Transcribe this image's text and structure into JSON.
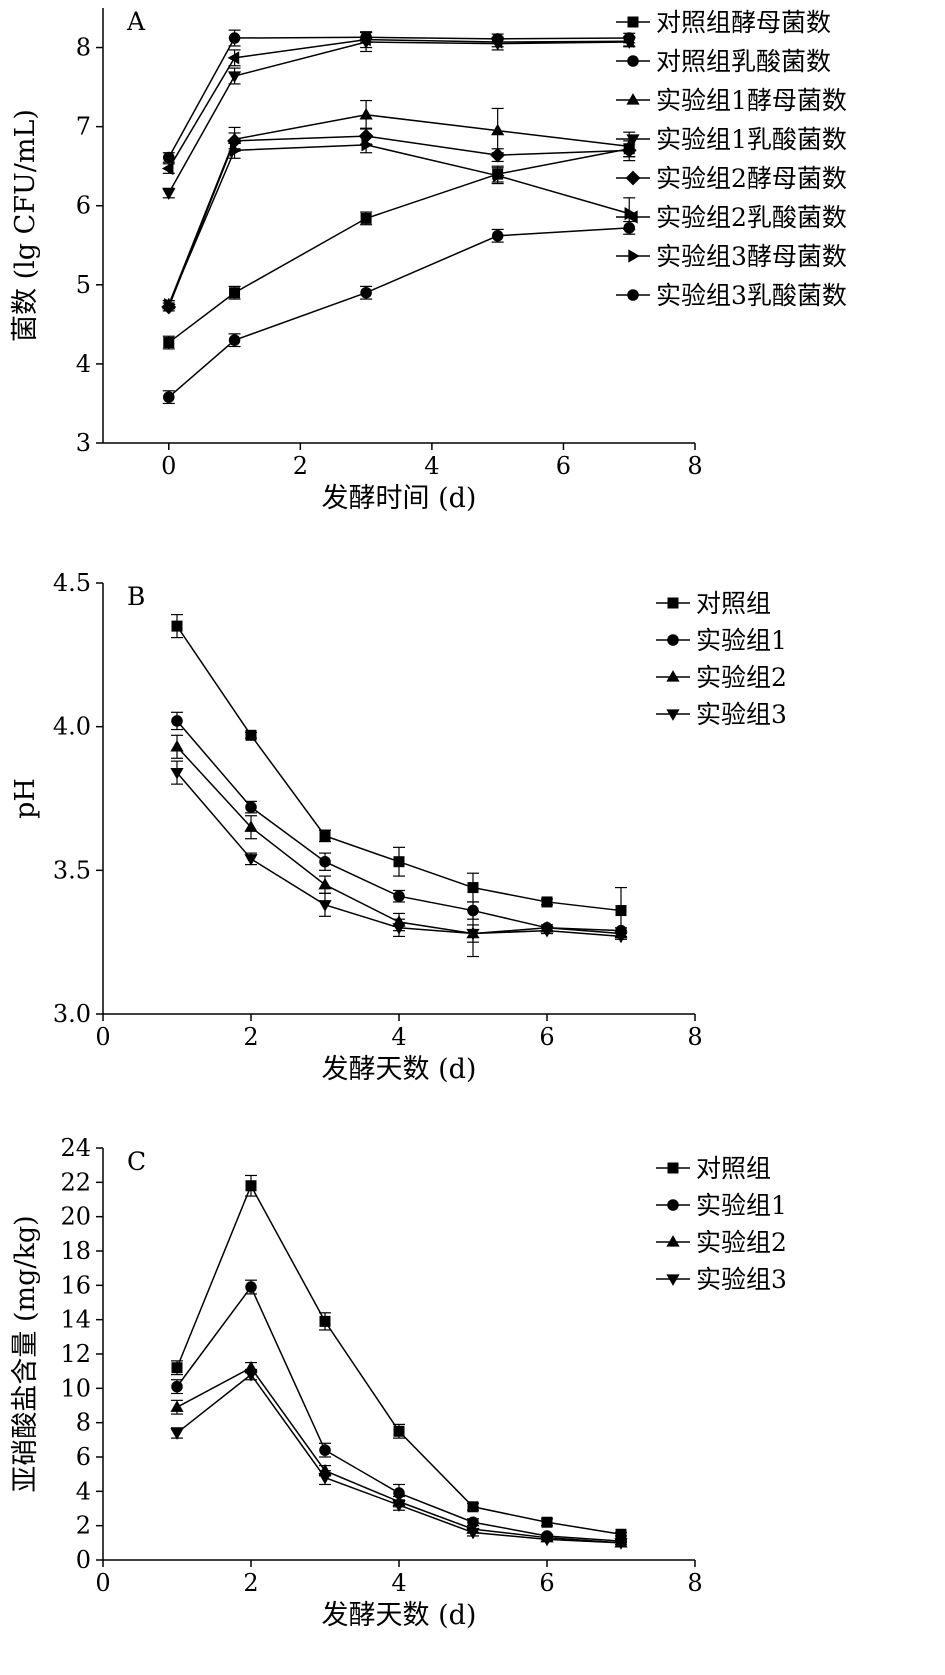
{
  "chart_data": [
    {
      "panel_label": "A",
      "type": "line",
      "xlabel": "发酵时间 (d)",
      "ylabel": "菌数 (lg CFU/mL)",
      "xlim": [
        -1,
        8
      ],
      "ylim": [
        3,
        8.5
      ],
      "xticks": [
        0,
        2,
        4,
        6,
        8
      ],
      "yticks": [
        3,
        4,
        5,
        6,
        7,
        8
      ],
      "grid": false,
      "legend_position": "right",
      "series": [
        {
          "name": "对照组酵母菌数",
          "marker": "square",
          "x": [
            0,
            1,
            3,
            5,
            7
          ],
          "y": [
            4.27,
            4.9,
            5.84,
            6.4,
            6.72
          ],
          "err": [
            0.08,
            0.08,
            0.08,
            0.1,
            0.1
          ]
        },
        {
          "name": "对照组乳酸菌数",
          "marker": "circle",
          "x": [
            0,
            1,
            3,
            5,
            7
          ],
          "y": [
            3.58,
            4.3,
            4.9,
            5.62,
            5.72
          ],
          "err": [
            0.08,
            0.08,
            0.08,
            0.08,
            0.08
          ]
        },
        {
          "name": "实验组1酵母菌数",
          "marker": "triangle-up",
          "x": [
            0,
            1,
            3,
            5,
            7
          ],
          "y": [
            4.75,
            6.84,
            7.15,
            6.95,
            6.75
          ],
          "err": [
            0.05,
            0.15,
            0.18,
            0.28,
            0.18
          ]
        },
        {
          "name": "实验组1乳酸菌数",
          "marker": "triangle-down",
          "x": [
            0,
            1,
            3,
            5,
            7
          ],
          "y": [
            6.16,
            7.64,
            8.07,
            8.05,
            8.07
          ],
          "err": [
            0.06,
            0.1,
            0.12,
            0.08,
            0.06
          ]
        },
        {
          "name": "实验组2酵母菌数",
          "marker": "diamond",
          "x": [
            0,
            1,
            3,
            5,
            7
          ],
          "y": [
            4.72,
            6.82,
            6.88,
            6.64,
            6.7
          ],
          "err": [
            0.05,
            0.1,
            0.1,
            0.08,
            0.08
          ]
        },
        {
          "name": "实验组2乳酸菌数",
          "marker": "triangle-left",
          "x": [
            0,
            1,
            3,
            5,
            7
          ],
          "y": [
            6.47,
            7.87,
            8.1,
            8.07,
            8.08
          ],
          "err": [
            0.06,
            0.1,
            0.1,
            0.06,
            0.06
          ]
        },
        {
          "name": "实验组3酵母菌数",
          "marker": "triangle-right",
          "x": [
            0,
            1,
            3,
            5,
            7
          ],
          "y": [
            4.75,
            6.7,
            6.77,
            6.38,
            5.9
          ],
          "err": [
            0.05,
            0.1,
            0.1,
            0.1,
            0.2
          ]
        },
        {
          "name": "实验组3乳酸菌数",
          "marker": "circle",
          "x": [
            0,
            1,
            3,
            5,
            7
          ],
          "y": [
            6.61,
            8.12,
            8.13,
            8.11,
            8.12
          ],
          "err": [
            0.06,
            0.1,
            0.06,
            0.06,
            0.06
          ]
        }
      ]
    },
    {
      "panel_label": "B",
      "type": "line",
      "xlabel": "发酵天数 (d)",
      "ylabel": "pH",
      "xlim": [
        0,
        8
      ],
      "ylim": [
        3.0,
        4.5
      ],
      "xticks": [
        0,
        2,
        4,
        6,
        8
      ],
      "yticks": [
        3.0,
        3.5,
        4.0,
        4.5
      ],
      "ytick_labels": [
        "3.0",
        "3.5",
        "4.0",
        "4.5"
      ],
      "grid": false,
      "legend_position": "top-right",
      "series": [
        {
          "name": "对照组",
          "marker": "square",
          "x": [
            1,
            2,
            3,
            4,
            5,
            6,
            7
          ],
          "y": [
            4.35,
            3.97,
            3.62,
            3.53,
            3.44,
            3.39,
            3.36
          ],
          "err": [
            0.04,
            0.01,
            0.02,
            0.05,
            0.05,
            0.01,
            0.08
          ]
        },
        {
          "name": "实验组1",
          "marker": "circle",
          "x": [
            1,
            2,
            3,
            4,
            5,
            6,
            7
          ],
          "y": [
            4.02,
            3.72,
            3.53,
            3.41,
            3.36,
            3.3,
            3.29
          ],
          "err": [
            0.03,
            0.02,
            0.03,
            0.02,
            0.03,
            0.01,
            0.01
          ]
        },
        {
          "name": "实验组2",
          "marker": "triangle-up",
          "x": [
            1,
            2,
            3,
            4,
            5,
            6,
            7
          ],
          "y": [
            3.93,
            3.65,
            3.45,
            3.32,
            3.28,
            3.3,
            3.28
          ],
          "err": [
            0.04,
            0.04,
            0.03,
            0.03,
            0.08,
            0.01,
            0.01
          ]
        },
        {
          "name": "实验组3",
          "marker": "triangle-down",
          "x": [
            1,
            2,
            3,
            4,
            5,
            6,
            7
          ],
          "y": [
            3.84,
            3.54,
            3.38,
            3.3,
            3.28,
            3.29,
            3.27
          ],
          "err": [
            0.04,
            0.02,
            0.04,
            0.03,
            0.03,
            0.01,
            0.01
          ]
        }
      ]
    },
    {
      "panel_label": "C",
      "type": "line",
      "xlabel": "发酵天数 (d)",
      "ylabel": "亚硝酸盐含量 (mg/kg)",
      "xlim": [
        0,
        8
      ],
      "ylim": [
        0,
        24
      ],
      "xticks": [
        0,
        2,
        4,
        6,
        8
      ],
      "yticks": [
        0,
        2,
        4,
        6,
        8,
        10,
        12,
        14,
        16,
        18,
        20,
        22,
        24
      ],
      "grid": false,
      "legend_position": "top-right",
      "series": [
        {
          "name": "对照组",
          "marker": "square",
          "x": [
            1,
            2,
            3,
            4,
            5,
            6,
            7
          ],
          "y": [
            11.2,
            21.8,
            13.9,
            7.5,
            3.1,
            2.2,
            1.5
          ],
          "err": [
            0.4,
            0.6,
            0.5,
            0.4,
            0.2,
            0.2,
            0.1
          ]
        },
        {
          "name": "实验组1",
          "marker": "circle",
          "x": [
            1,
            2,
            3,
            4,
            5,
            6,
            7
          ],
          "y": [
            10.1,
            15.9,
            6.4,
            3.9,
            2.2,
            1.4,
            1.1
          ],
          "err": [
            0.4,
            0.4,
            0.4,
            0.5,
            0.2,
            0.1,
            0.1
          ]
        },
        {
          "name": "实验组2",
          "marker": "triangle-up",
          "x": [
            1,
            2,
            3,
            4,
            5,
            6,
            7
          ],
          "y": [
            8.9,
            11.2,
            5.2,
            3.4,
            1.8,
            1.3,
            1.0
          ],
          "err": [
            0.4,
            0.3,
            0.3,
            0.3,
            0.2,
            0.1,
            0.1
          ]
        },
        {
          "name": "实验组3",
          "marker": "triangle-down",
          "x": [
            1,
            2,
            3,
            4,
            5,
            6,
            7
          ],
          "y": [
            7.4,
            10.8,
            4.8,
            3.2,
            1.6,
            1.2,
            1.0
          ],
          "err": [
            0.3,
            0.3,
            0.4,
            0.3,
            0.2,
            0.1,
            0.1
          ]
        }
      ]
    }
  ]
}
